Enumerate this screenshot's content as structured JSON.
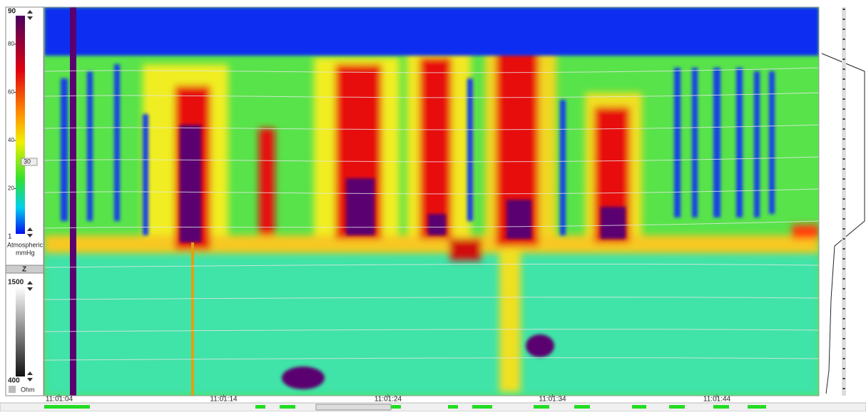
{
  "pressure_scale": {
    "max_label": "90",
    "ticks": [
      "80",
      "60",
      "40",
      "20"
    ],
    "min_label": "1",
    "reference": "Atmospheric",
    "unit": "mmHg",
    "marker": "30"
  },
  "impedance_scale": {
    "header": "Z",
    "max_label": "1500",
    "min_label": "400",
    "unit": "Ohm"
  },
  "time_axis": {
    "labels": [
      "11:01:04",
      "11:01:14",
      "11:01:24",
      "11:01:34",
      "11:01:44"
    ]
  }
}
